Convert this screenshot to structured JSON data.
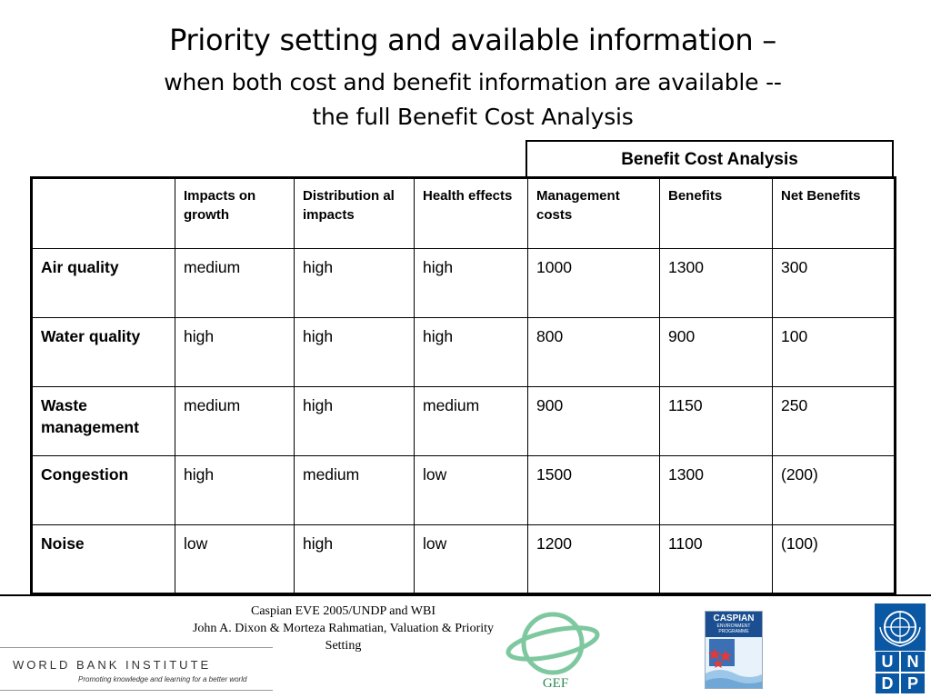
{
  "slide": {
    "title": "Priority setting and available information –",
    "subtitle_line1": "when both cost and benefit information are available --",
    "subtitle_line2": "the full Benefit Cost Analysis"
  },
  "bca_header": "Benefit Cost Analysis",
  "table": {
    "headers": [
      "",
      "Impacts on growth",
      "Distribution al impacts",
      "Health effects",
      "Management costs",
      "Benefits",
      "Net Benefits"
    ],
    "rows": [
      [
        "Air quality",
        "medium",
        "high",
        "high",
        "1000",
        "1300",
        "300"
      ],
      [
        "Water quality",
        "high",
        "high",
        "high",
        "800",
        "900",
        "100"
      ],
      [
        "Waste management",
        "medium",
        "high",
        "medium",
        "900",
        "1150",
        "250"
      ],
      [
        "Congestion",
        "high",
        "medium",
        "low",
        "1500",
        "1300",
        "(200)"
      ],
      [
        "Noise",
        "low",
        "high",
        "low",
        "1200",
        "1100",
        "(100)"
      ]
    ]
  },
  "footer": {
    "line1": "Caspian EVE 2005/UNDP and WBI",
    "line2": "John A. Dixon & Morteza Rahmatian, Valuation & Priority",
    "line3": "Setting"
  },
  "logos": {
    "wbi_name": "WORLD BANK INSTITUTE",
    "wbi_tagline": "Promoting knowledge and learning for a better world",
    "gef_label": "GEF",
    "caspian_line1": "CASPIAN",
    "caspian_line2": "ENVIRONMENT",
    "caspian_line3": "PROGRAMME",
    "undp_letters": [
      "U",
      "N",
      "D",
      "P"
    ]
  },
  "colors": {
    "gef_green": "#2e8b57",
    "undp_blue": "#0a57a4",
    "caspian_blue": "#1c4f91"
  }
}
